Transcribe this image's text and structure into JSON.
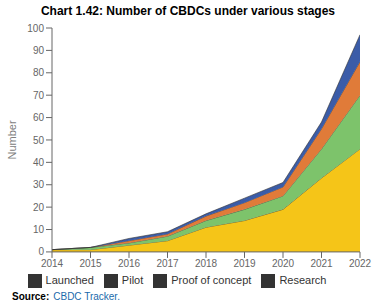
{
  "chart_data": {
    "type": "area",
    "stacked": true,
    "title": "Chart 1.42: Number of CBDCs under various stages",
    "ylabel": "Number",
    "x": [
      2014,
      2015,
      2016,
      2017,
      2018,
      2019,
      2020,
      2021,
      2022
    ],
    "xlim": [
      2014,
      2022
    ],
    "xticks": [
      2014,
      2015,
      2016,
      2017,
      2018,
      2019,
      2020,
      2021,
      2022
    ],
    "ylim": [
      0,
      100
    ],
    "yticks": [
      0,
      10,
      20,
      30,
      40,
      50,
      60,
      70,
      80,
      90,
      100
    ],
    "series": [
      {
        "name": "Research",
        "color": "#F5C518",
        "values": [
          1,
          1,
          3,
          5,
          11,
          14,
          19,
          33,
          46
        ]
      },
      {
        "name": "Proof of concept",
        "color": "#7DC36B",
        "values": [
          0,
          1,
          1,
          2,
          3,
          5,
          6,
          13,
          24
        ]
      },
      {
        "name": "Pilot",
        "color": "#E07B39",
        "values": [
          0,
          0,
          1,
          1,
          2,
          3,
          4,
          9,
          15
        ]
      },
      {
        "name": "Launched",
        "color": "#3B5CA8",
        "values": [
          0,
          0,
          1,
          1,
          1,
          2,
          2,
          3,
          12
        ]
      }
    ],
    "legend": "bottom",
    "grid": false,
    "annotations": [
      "Source:",
      "CBDC Tracker."
    ]
  }
}
